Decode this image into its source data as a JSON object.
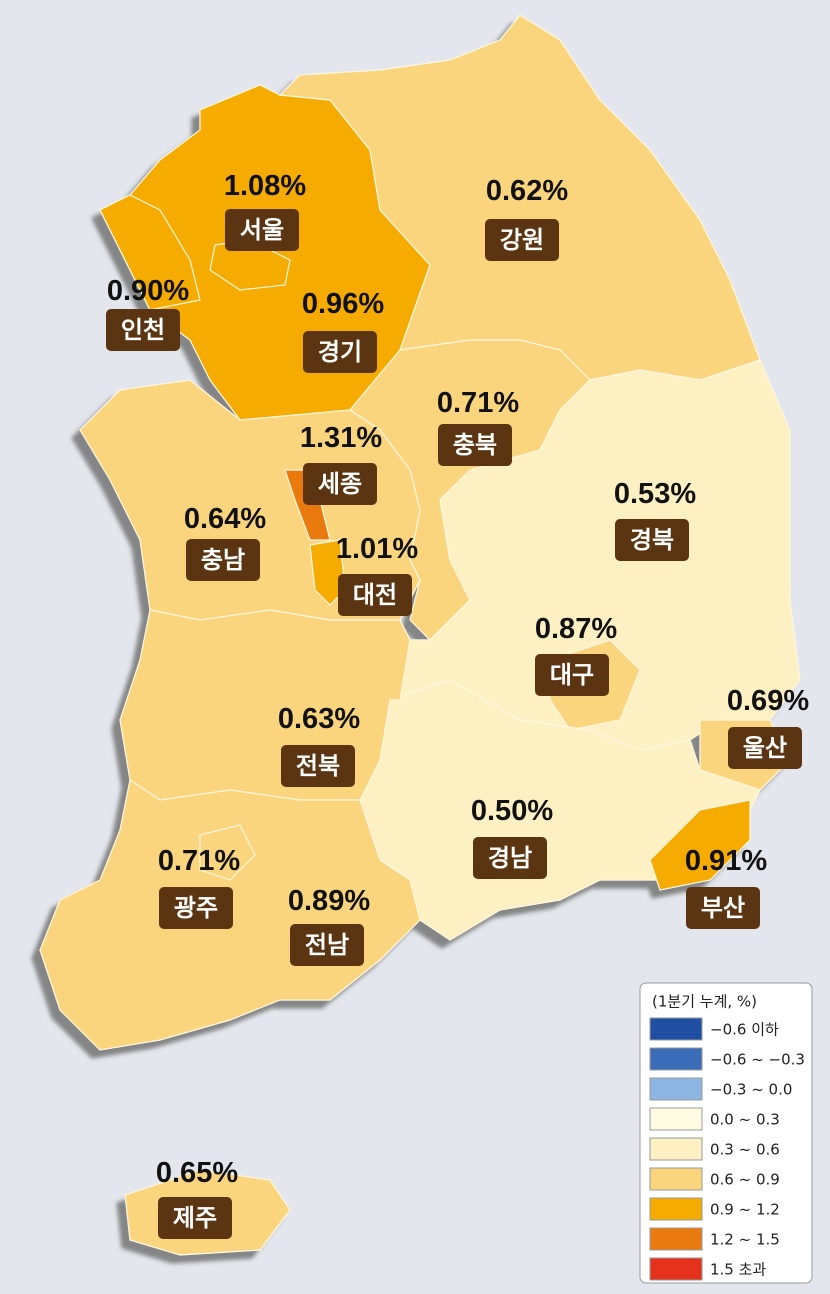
{
  "regions": [
    {
      "name": "서울",
      "value": 1.08,
      "value_label": "1.08%"
    },
    {
      "name": "강원",
      "value": 0.62,
      "value_label": "0.62%"
    },
    {
      "name": "인천",
      "value": 0.9,
      "value_label": "0.90%"
    },
    {
      "name": "경기",
      "value": 0.96,
      "value_label": "0.96%"
    },
    {
      "name": "충북",
      "value": 0.71,
      "value_label": "0.71%"
    },
    {
      "name": "세종",
      "value": 1.31,
      "value_label": "1.31%"
    },
    {
      "name": "경북",
      "value": 0.53,
      "value_label": "0.53%"
    },
    {
      "name": "충남",
      "value": 0.64,
      "value_label": "0.64%"
    },
    {
      "name": "대전",
      "value": 1.01,
      "value_label": "1.01%"
    },
    {
      "name": "대구",
      "value": 0.87,
      "value_label": "0.87%"
    },
    {
      "name": "울산",
      "value": 0.69,
      "value_label": "0.69%"
    },
    {
      "name": "전북",
      "value": 0.63,
      "value_label": "0.63%"
    },
    {
      "name": "경남",
      "value": 0.5,
      "value_label": "0.50%"
    },
    {
      "name": "부산",
      "value": 0.91,
      "value_label": "0.91%"
    },
    {
      "name": "광주",
      "value": 0.71,
      "value_label": "0.71%"
    },
    {
      "name": "전남",
      "value": 0.89,
      "value_label": "0.89%"
    },
    {
      "name": "제주",
      "value": 0.65,
      "value_label": "0.65%"
    }
  ],
  "legend": {
    "title": "(1분기 누계, %)",
    "bins": [
      {
        "label": "−0.6 이하",
        "range": [
          null,
          -0.6
        ],
        "color": "#1f4ea3"
      },
      {
        "label": "−0.6 ~ −0.3",
        "range": [
          -0.6,
          -0.3
        ],
        "color": "#3a6cb8"
      },
      {
        "label": "−0.3 ~ 0.0",
        "range": [
          -0.3,
          0.0
        ],
        "color": "#8db5e2"
      },
      {
        "label": "0.0 ~ 0.3",
        "range": [
          0.0,
          0.3
        ],
        "color": "#fffbe2"
      },
      {
        "label": "0.3 ~ 0.6",
        "range": [
          0.3,
          0.6
        ],
        "color": "#fdf0c2"
      },
      {
        "label": "0.6 ~ 0.9",
        "range": [
          0.6,
          0.9
        ],
        "color": "#fbd57d"
      },
      {
        "label": "0.9 ~ 1.2",
        "range": [
          0.9,
          1.2
        ],
        "color": "#f5ab00"
      },
      {
        "label": "1.2 ~ 1.5",
        "range": [
          1.2,
          1.5
        ],
        "color": "#ea7a10"
      },
      {
        "label": "1.5 초과",
        "range": [
          1.5,
          null
        ],
        "color": "#e4321c"
      }
    ]
  }
}
